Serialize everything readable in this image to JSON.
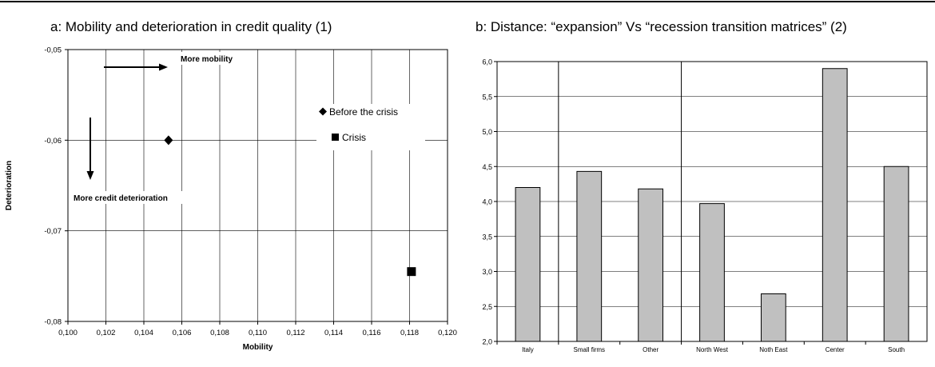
{
  "panel_a": {
    "title": "a: Mobility and deterioration in credit quality (1)"
  },
  "panel_b": {
    "title": "b: Distance: “expansion” Vs “recession transition matrices” (2)"
  },
  "chart_data": [
    {
      "type": "scatter",
      "title": "a: Mobility and deterioration in credit quality (1)",
      "xlabel": "Mobility",
      "ylabel": "Deterioration",
      "xlim": [
        0.1,
        0.12
      ],
      "ylim": [
        -0.08,
        -0.05
      ],
      "xticks": [
        "0,100",
        "0,102",
        "0,104",
        "0,106",
        "0,108",
        "0,110",
        "0,112",
        "0,114",
        "0,116",
        "0,118",
        "0,120"
      ],
      "yticks": [
        "-0,05",
        "-0,06",
        "-0,07",
        "-0,08"
      ],
      "grid": true,
      "legend_position": "right",
      "series": [
        {
          "name": "Before the crisis",
          "marker": "diamond",
          "color": "#000000",
          "points": [
            {
              "x": 0.1053,
              "y": -0.06
            }
          ]
        },
        {
          "name": "Crisis",
          "marker": "square",
          "color": "#000000",
          "points": [
            {
              "x": 0.1181,
              "y": -0.0745
            }
          ]
        }
      ],
      "annotations": [
        {
          "text": "More mobility",
          "arrow": "right"
        },
        {
          "text": "More credit deterioration",
          "arrow": "down"
        }
      ]
    },
    {
      "type": "bar",
      "title": "b: Distance: “expansion” Vs “recession transition matrices” (2)",
      "xlabel": "",
      "ylabel": "",
      "categories": [
        "Italy",
        "Small firms",
        "Other",
        "North West",
        "Noth East",
        "Center",
        "South"
      ],
      "values": [
        4.2,
        4.43,
        4.18,
        3.97,
        2.68,
        5.9,
        4.5
      ],
      "ylim": [
        2.0,
        6.0
      ],
      "yticks": [
        "2,0",
        "2,5",
        "3,0",
        "3,5",
        "4,0",
        "4,5",
        "5,0",
        "5,5",
        "6,0"
      ],
      "grid": true,
      "bar_color": "#c0c0c0",
      "group_separators_after": [
        "Italy",
        "Other"
      ]
    }
  ]
}
